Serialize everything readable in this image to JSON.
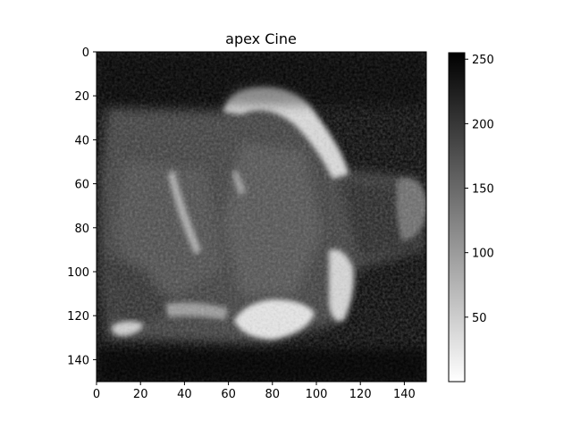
{
  "figure": {
    "title": "apex Cine"
  },
  "image": {
    "description_type": "grayscale MRI cine frame",
    "cmap": "gray_r",
    "x_range": [
      0,
      150
    ],
    "y_range": [
      0,
      150
    ],
    "x_ticks": [
      "0",
      "20",
      "40",
      "60",
      "80",
      "100",
      "120",
      "140"
    ],
    "y_ticks": [
      "0",
      "20",
      "40",
      "60",
      "80",
      "100",
      "120",
      "140"
    ]
  },
  "colorbar": {
    "range": [
      0,
      255
    ],
    "ticks": [
      "50",
      "100",
      "150",
      "200",
      "250"
    ]
  }
}
